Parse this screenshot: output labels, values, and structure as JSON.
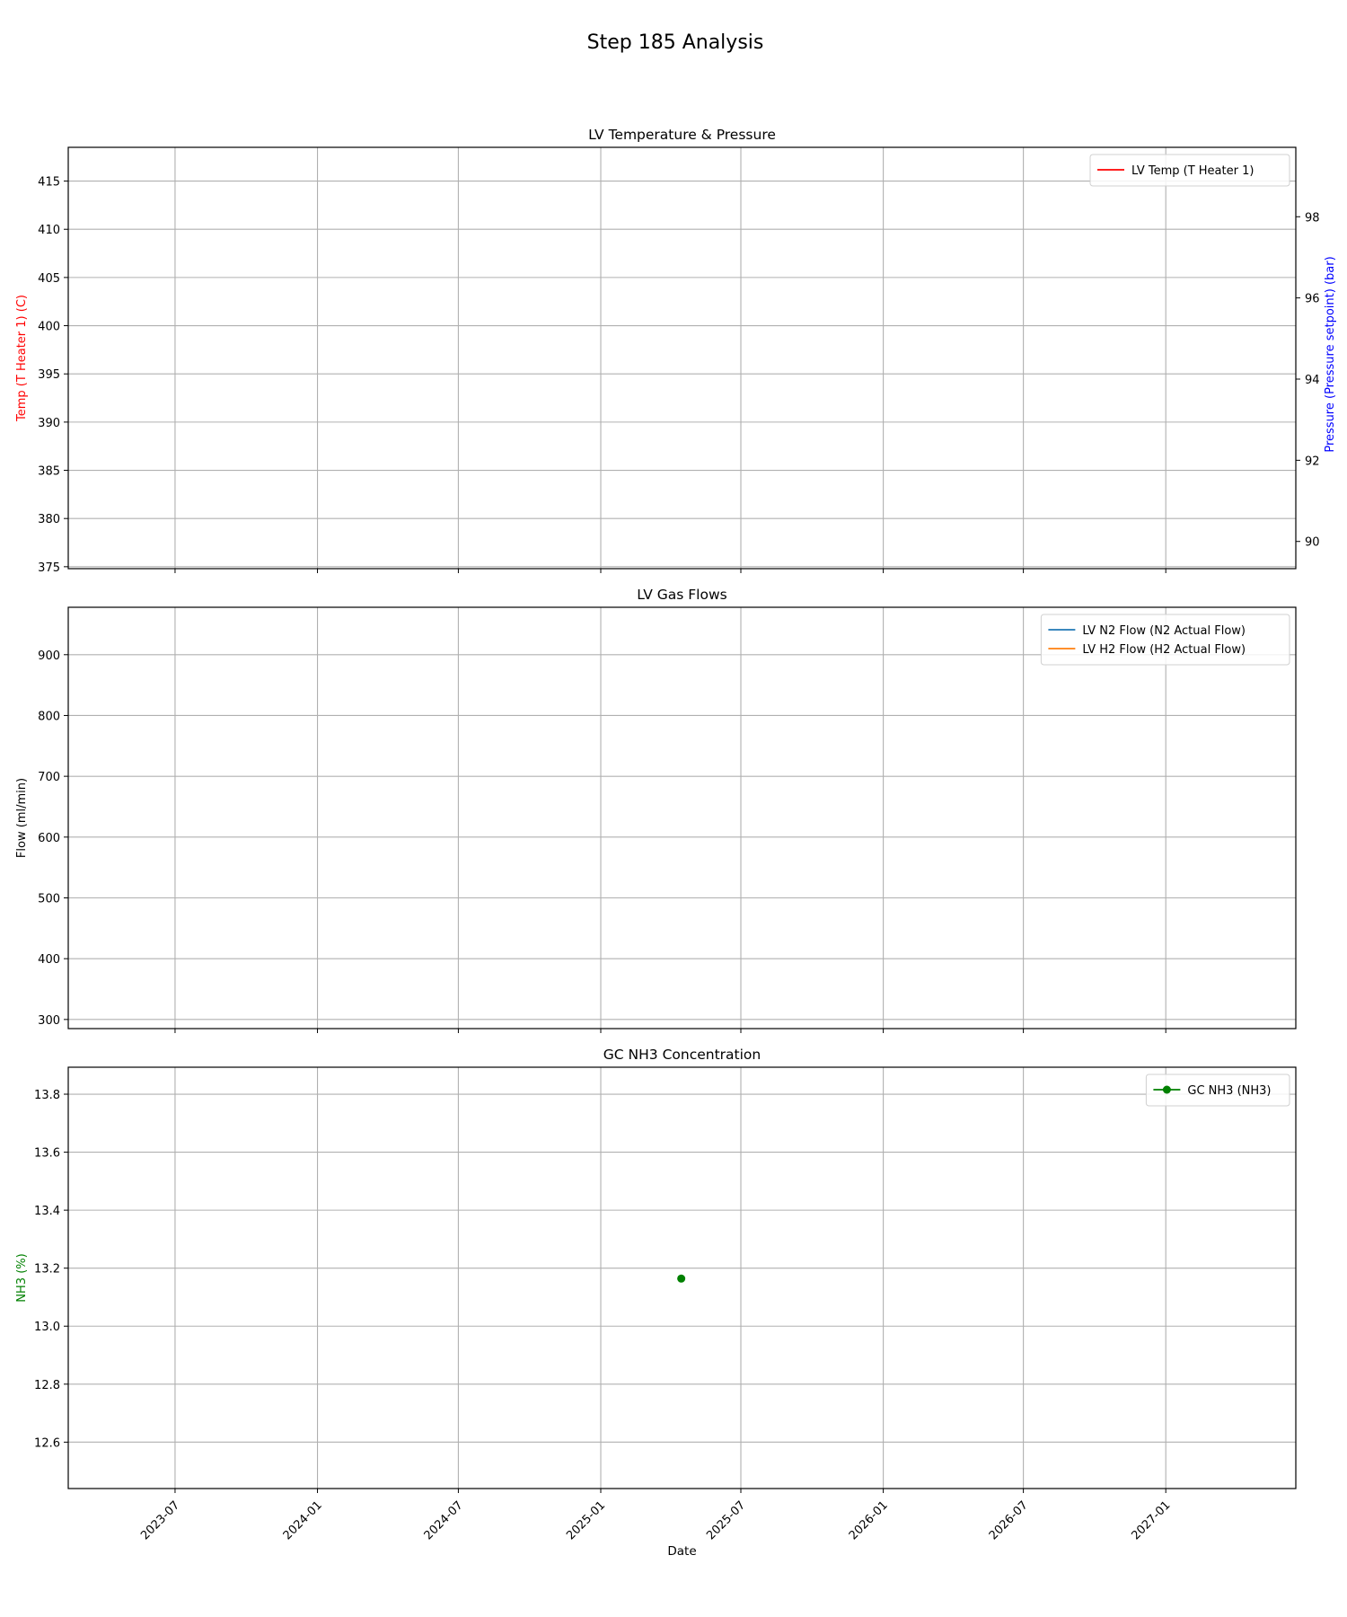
{
  "figure": {
    "title": "Step 185 Analysis"
  },
  "x_axis": {
    "label": "Date",
    "ticks": [
      "2023-07",
      "2024-01",
      "2024-07",
      "2025-01",
      "2025-07",
      "2026-01",
      "2026-07",
      "2027-01"
    ],
    "range": [
      "2023-02-13",
      "2027-06-18"
    ]
  },
  "chart_data": [
    {
      "type": "line",
      "title": "LV Temperature & Pressure",
      "ylabel": "Temp (T Heater 1) (C)",
      "ylabel_color": "#ff0000",
      "ylim": [
        374.8,
        418.5
      ],
      "yticks": [
        375,
        380,
        385,
        390,
        395,
        400,
        405,
        410,
        415
      ],
      "y2label": "Pressure (Pressure setpoint) (bar)",
      "y2label_color": "#0000ff",
      "y2lim": [
        89.33,
        99.71
      ],
      "y2ticks": [
        90,
        92,
        94,
        96,
        98
      ],
      "grid": true,
      "legend_position": "top-right",
      "series": [
        {
          "name": "LV Temp (T Heater 1)",
          "color": "#ff0000",
          "marker": "none",
          "points": []
        }
      ]
    },
    {
      "type": "line",
      "title": "LV Gas Flows",
      "ylabel": "Flow (ml/min)",
      "ylabel_color": "#000000",
      "ylim": [
        285,
        978
      ],
      "yticks": [
        300,
        400,
        500,
        600,
        700,
        800,
        900
      ],
      "grid": true,
      "legend_position": "top-right",
      "series": [
        {
          "name": "LV N2 Flow (N2 Actual Flow)",
          "color": "#1f77b4",
          "marker": "none",
          "points": []
        },
        {
          "name": "LV H2 Flow (H2 Actual Flow)",
          "color": "#ff7f0e",
          "marker": "none",
          "points": []
        }
      ]
    },
    {
      "type": "line",
      "title": "GC NH3 Concentration",
      "ylabel": "NH3 (%)",
      "ylabel_color": "#008000",
      "ylim": [
        12.44,
        13.893
      ],
      "yticks": [
        12.6,
        12.8,
        13.0,
        13.2,
        13.4,
        13.6,
        13.8
      ],
      "grid": true,
      "legend_position": "top-right",
      "series": [
        {
          "name": "GC NH3 (NH3)",
          "color": "#008000",
          "marker": "circle",
          "points": [
            {
              "x": "2025-04-15",
              "y": 13.164
            }
          ]
        }
      ]
    }
  ]
}
